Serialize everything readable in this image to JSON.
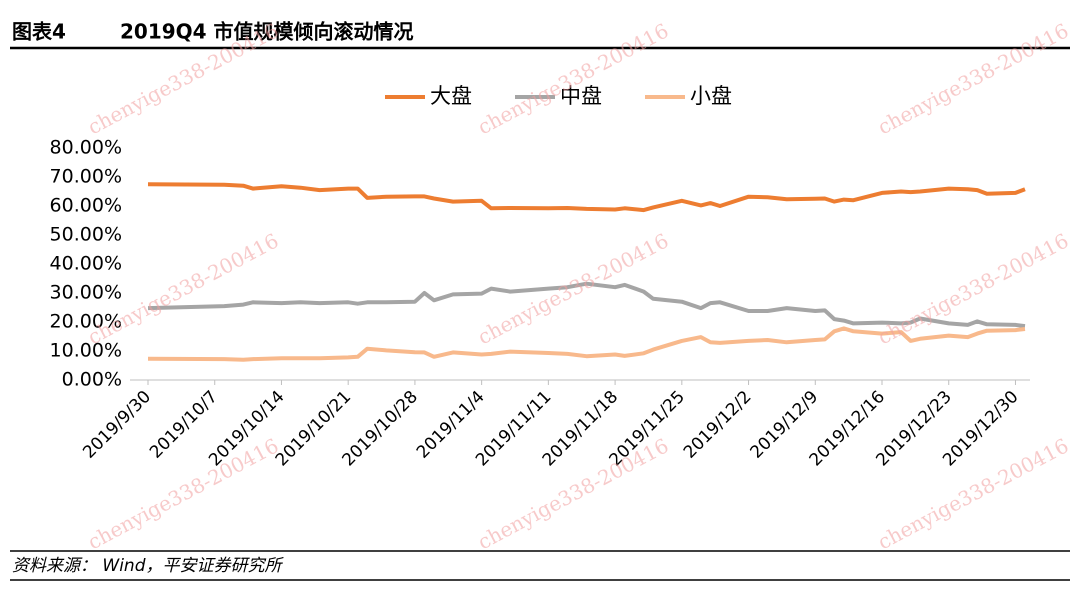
{
  "header": {
    "figure": "图表4",
    "title": "2019Q4 市值规模倾向滚动情况"
  },
  "chart_data": {
    "type": "line",
    "x": [
      "2019/9/30",
      "2019/10/8",
      "2019/10/10",
      "2019/10/11",
      "2019/10/14",
      "2019/10/16",
      "2019/10/18",
      "2019/10/21",
      "2019/10/22",
      "2019/10/23",
      "2019/10/25",
      "2019/10/28",
      "2019/10/29",
      "2019/10/30",
      "2019/11/1",
      "2019/11/4",
      "2019/11/5",
      "2019/11/7",
      "2019/11/11",
      "2019/11/13",
      "2019/11/15",
      "2019/11/18",
      "2019/11/19",
      "2019/11/21",
      "2019/11/22",
      "2019/11/25",
      "2019/11/27",
      "2019/11/28",
      "2019/11/29",
      "2019/12/2",
      "2019/12/4",
      "2019/12/6",
      "2019/12/9",
      "2019/12/10",
      "2019/12/11",
      "2019/12/12",
      "2019/12/13",
      "2019/12/16",
      "2019/12/18",
      "2019/12/19",
      "2019/12/20",
      "2019/12/23",
      "2019/12/25",
      "2019/12/26",
      "2019/12/27",
      "2019/12/30",
      "2019/12/31"
    ],
    "series": [
      {
        "name": "大盘",
        "color": "#ed7d31",
        "values": [
          67.5,
          67.3,
          67,
          66,
          66.8,
          66.3,
          65.5,
          66,
          66,
          62.8,
          63.2,
          63.3,
          63.3,
          62.6,
          61.5,
          61.8,
          59.2,
          59.3,
          59.2,
          59.3,
          59,
          58.8,
          59.2,
          58.6,
          59.5,
          61.8,
          60.2,
          61,
          60,
          63.2,
          63,
          62.3,
          62.5,
          62.6,
          61.5,
          62.2,
          62,
          64.5,
          65,
          64.8,
          65,
          66,
          65.8,
          65.5,
          64.2,
          64.5,
          65.8
        ]
      },
      {
        "name": "中盘",
        "color": "#a5a5a5",
        "values": [
          24.8,
          25.5,
          26,
          26.8,
          26.5,
          26.8,
          26.5,
          26.8,
          26.3,
          26.8,
          26.8,
          27,
          30,
          27.5,
          29.5,
          29.8,
          31.5,
          30.5,
          31.5,
          32,
          33.2,
          32,
          32.8,
          30.5,
          28,
          27,
          24.8,
          26.5,
          26.8,
          23.8,
          23.8,
          24.8,
          23.8,
          24,
          21,
          20.5,
          19.5,
          19.8,
          19.5,
          19.8,
          21.2,
          19.5,
          19,
          20.2,
          19.2,
          19,
          18.6
        ]
      },
      {
        "name": "小盘",
        "color": "#f8b98c",
        "values": [
          7.3,
          7.2,
          7,
          7.2,
          7.5,
          7.5,
          7.5,
          7.8,
          8,
          10.8,
          10.2,
          9.6,
          9.5,
          8,
          9.5,
          8.8,
          9,
          9.8,
          9.3,
          9,
          8.2,
          8.8,
          8.3,
          9.2,
          10.5,
          13.5,
          14.8,
          13,
          12.8,
          13.5,
          13.8,
          13,
          13.8,
          14,
          16.8,
          17.8,
          16.8,
          16,
          16.5,
          13.5,
          14.2,
          15.3,
          14.8,
          16,
          17,
          17.2,
          17.6
        ]
      }
    ],
    "xlim": [
      "2019/9/30",
      "2019/12/31"
    ],
    "xticks": [
      "2019/9/30",
      "2019/10/7",
      "2019/10/14",
      "2019/10/21",
      "2019/10/28",
      "2019/11/4",
      "2019/11/11",
      "2019/11/18",
      "2019/11/25",
      "2019/12/2",
      "2019/12/9",
      "2019/12/16",
      "2019/12/23",
      "2019/12/30"
    ],
    "ylim": [
      0,
      80
    ],
    "yticks": [
      {
        "value": 0,
        "label": "0.00%"
      },
      {
        "value": 10,
        "label": "10.00%"
      },
      {
        "value": 20,
        "label": "20.00%"
      },
      {
        "value": 30,
        "label": "30.00%"
      },
      {
        "value": 40,
        "label": "40.00%"
      },
      {
        "value": 50,
        "label": "50.00%"
      },
      {
        "value": 60,
        "label": "60.00%"
      },
      {
        "value": 70,
        "label": "70.00%"
      },
      {
        "value": 80,
        "label": "80.00%"
      }
    ],
    "legend": "top"
  },
  "source": "资料来源： Wind，平安证券研究所",
  "watermark": "chenyige338-200416"
}
